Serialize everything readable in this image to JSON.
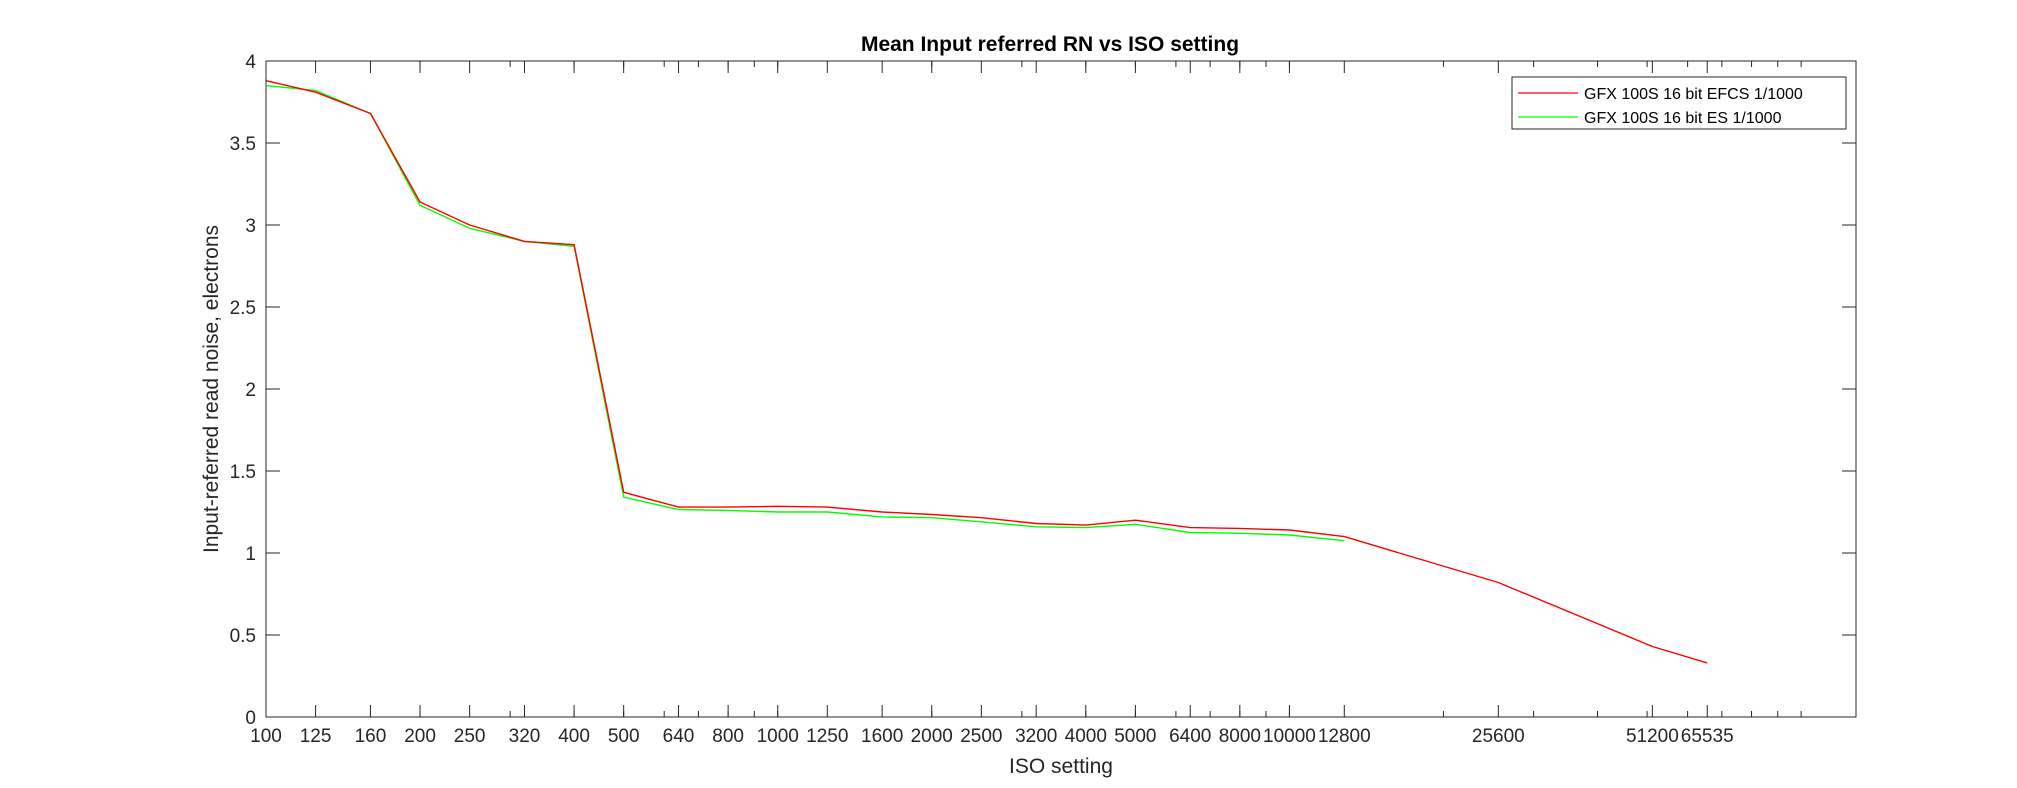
{
  "chart_data": {
    "type": "line",
    "title": "Mean Input referred RN vs ISO setting",
    "xlabel": "ISO setting",
    "ylabel": "Input-referred read noise, electrons",
    "x_scale": "log",
    "xlim": [
      100,
      128000
    ],
    "ylim": [
      0,
      4
    ],
    "grid": false,
    "legend_position": "top-right",
    "x_ticks": [
      100,
      125,
      160,
      200,
      250,
      320,
      400,
      500,
      640,
      800,
      1000,
      1250,
      1600,
      2000,
      2500,
      3200,
      4000,
      5000,
      6400,
      8000,
      10000,
      12800,
      25600,
      51200,
      65535
    ],
    "x_tick_labels": [
      "100",
      "125",
      "160",
      "200",
      "250",
      "320",
      "400",
      "500",
      "640",
      "800",
      "1000",
      "1250",
      "1600",
      "2000",
      "2500",
      "3200",
      "4000",
      "5000",
      "6400",
      "8000",
      "10000",
      "12800",
      "25600",
      "51200",
      "65535"
    ],
    "y_ticks": [
      0,
      0.5,
      1,
      1.5,
      2,
      2.5,
      3,
      3.5,
      4
    ],
    "y_tick_labels": [
      "0",
      "0.5",
      "1",
      "1.5",
      "2",
      "2.5",
      "3",
      "3.5",
      "4"
    ],
    "series": [
      {
        "name": "GFX 100S 16 bit EFCS 1/1000",
        "color": "#ff0000",
        "x": [
          100,
          125,
          160,
          200,
          250,
          320,
          400,
          500,
          640,
          800,
          1000,
          1250,
          1600,
          2000,
          2500,
          3200,
          4000,
          5000,
          6400,
          8000,
          10000,
          12800,
          25600,
          51200,
          65535
        ],
        "y": [
          3.88,
          3.81,
          3.68,
          3.14,
          3.0,
          2.9,
          2.88,
          1.37,
          1.28,
          1.28,
          1.285,
          1.28,
          1.25,
          1.235,
          1.215,
          1.18,
          1.17,
          1.2,
          1.155,
          1.15,
          1.14,
          1.1,
          0.82,
          0.43,
          0.33
        ]
      },
      {
        "name": "GFX 100S 16 bit ES 1/1000",
        "color": "#00ff00",
        "x": [
          100,
          125,
          160,
          200,
          250,
          320,
          400,
          500,
          640,
          800,
          1000,
          1250,
          1600,
          2000,
          2500,
          3200,
          4000,
          5000,
          6400,
          8000,
          10000,
          12800
        ],
        "y": [
          3.85,
          3.82,
          3.68,
          3.12,
          2.98,
          2.9,
          2.87,
          1.34,
          1.265,
          1.26,
          1.25,
          1.25,
          1.22,
          1.215,
          1.19,
          1.16,
          1.155,
          1.175,
          1.125,
          1.12,
          1.11,
          1.075
        ]
      }
    ]
  }
}
